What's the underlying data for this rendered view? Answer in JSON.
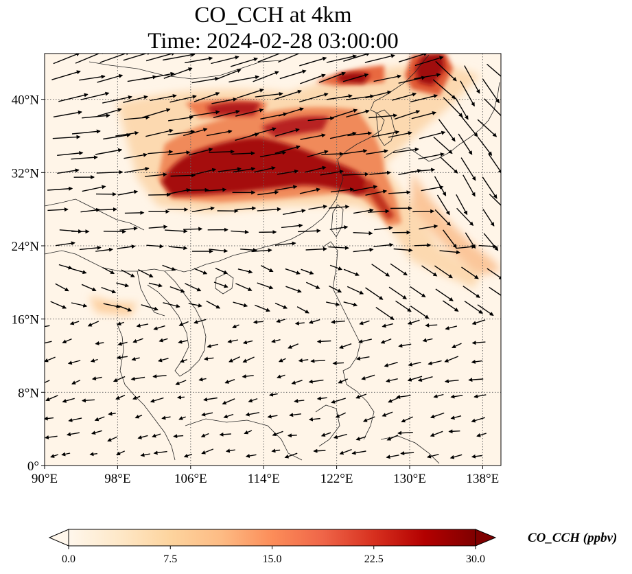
{
  "title": {
    "line1": "CO_CCH at 4km",
    "line2": "Time: 2024-02-28 03:00:00"
  },
  "map": {
    "projection": "PlateCarree",
    "lon_range": [
      90,
      140
    ],
    "lat_range": [
      0,
      45
    ],
    "gridlines": "dotted",
    "x_ticks": [
      {
        "value": 90,
        "label": "90°E"
      },
      {
        "value": 98,
        "label": "98°E"
      },
      {
        "value": 106,
        "label": "106°E"
      },
      {
        "value": 114,
        "label": "114°E"
      },
      {
        "value": 122,
        "label": "122°E"
      },
      {
        "value": 130,
        "label": "130°E"
      },
      {
        "value": 138,
        "label": "138°E"
      }
    ],
    "y_ticks": [
      {
        "value": 0,
        "label": "0°"
      },
      {
        "value": 8,
        "label": "8°N"
      },
      {
        "value": 16,
        "label": "16°N"
      },
      {
        "value": 24,
        "label": "24°N"
      },
      {
        "value": 32,
        "label": "32°N"
      },
      {
        "value": 40,
        "label": "40°N"
      }
    ],
    "field_colors": {
      "low": "#fff5e6",
      "mid": "#fdbb84",
      "high": "#d7301f",
      "max": "#8b0000"
    }
  },
  "colorbar": {
    "label": "CO_CCH (ppbv)",
    "min": 0,
    "max": 30,
    "extend": "both",
    "colormap": "OrRd",
    "colors": [
      "#fff7ec",
      "#fee8c8",
      "#fdd49e",
      "#fdbb84",
      "#fc8d59",
      "#ef6548",
      "#d7301f",
      "#b30000",
      "#7f0000"
    ],
    "ticks": [
      {
        "value": 0,
        "label": "0.0"
      },
      {
        "value": 7.5,
        "label": "7.5"
      },
      {
        "value": 15,
        "label": "15.0"
      },
      {
        "value": 22.5,
        "label": "22.5"
      },
      {
        "value": 30,
        "label": "30.0"
      }
    ]
  }
}
